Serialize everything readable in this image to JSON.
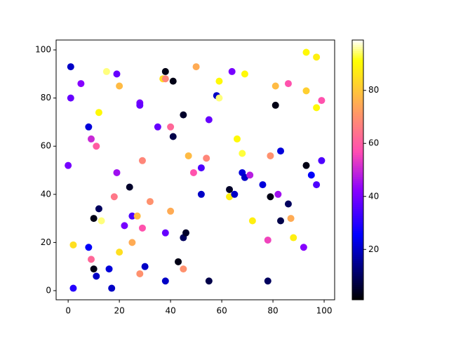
{
  "chart_data": {
    "type": "scatter",
    "colormap": "gnuplot2",
    "x": [
      1,
      1,
      0,
      2,
      2,
      5,
      8,
      9,
      8,
      9,
      10,
      10,
      11,
      11,
      12,
      12,
      13,
      15,
      16,
      17,
      18,
      19,
      19,
      20,
      20,
      22,
      24,
      25,
      25,
      27,
      28,
      28,
      28,
      29,
      29,
      30,
      32,
      35,
      37,
      38,
      38,
      38,
      38,
      40,
      40,
      41,
      41,
      43,
      45,
      45,
      46,
      45,
      47,
      49,
      50,
      52,
      52,
      54,
      55,
      55,
      58,
      59,
      59,
      63,
      63,
      64,
      65,
      66,
      68,
      68,
      69,
      69,
      71,
      72,
      76,
      78,
      78,
      79,
      79,
      81,
      81,
      82,
      83,
      83,
      86,
      86,
      87,
      88,
      92,
      93,
      93,
      93,
      95,
      97,
      97,
      97,
      99,
      99
    ],
    "values": [
      93,
      80,
      52,
      1,
      19,
      86,
      68,
      63,
      18,
      13,
      30,
      9,
      60,
      6,
      74,
      34,
      29,
      91,
      9,
      1,
      39,
      90,
      49,
      85,
      16,
      27,
      43,
      31,
      20,
      31,
      78,
      77,
      7,
      54,
      26,
      10,
      37,
      68,
      88,
      91,
      88,
      24,
      4,
      68,
      33,
      87,
      64,
      12,
      73,
      22,
      24,
      9,
      56,
      49,
      93,
      51,
      40,
      55,
      71,
      4,
      81,
      87,
      80,
      42,
      39,
      91,
      40,
      63,
      57,
      49,
      90,
      47,
      48,
      29,
      44,
      21,
      4,
      56,
      39,
      85,
      77,
      40,
      29,
      58,
      86,
      36,
      30,
      22,
      18,
      99,
      83,
      52,
      48,
      97,
      76,
      44,
      79,
      54
    ],
    "color_values": [
      20,
      38,
      40,
      30,
      85,
      42,
      22,
      50,
      25,
      62,
      3,
      3,
      60,
      20,
      90,
      10,
      95,
      95,
      22,
      20,
      65,
      38,
      45,
      78,
      85,
      40,
      5,
      35,
      75,
      78,
      40,
      38,
      70,
      68,
      58,
      20,
      70,
      38,
      85,
      3,
      68,
      38,
      20,
      62,
      75,
      3,
      8,
      3,
      5,
      10,
      5,
      70,
      78,
      58,
      75,
      35,
      20,
      68,
      38,
      8,
      20,
      90,
      95,
      5,
      88,
      40,
      20,
      90,
      93,
      22,
      90,
      20,
      48,
      88,
      22,
      55,
      10,
      70,
      3,
      78,
      3,
      45,
      8,
      22,
      58,
      10,
      75,
      88,
      42,
      90,
      82,
      3,
      25,
      88,
      90,
      35,
      58,
      35
    ],
    "xlim": [
      -4.7,
      104.1
    ],
    "ylim": [
      -3.8,
      104.1
    ],
    "xticks": [
      0,
      20,
      40,
      60,
      80,
      100
    ],
    "yticks": [
      0,
      20,
      40,
      60,
      80,
      100
    ],
    "clim": [
      1,
      99
    ],
    "cticks": [
      20,
      40,
      60,
      80
    ]
  }
}
